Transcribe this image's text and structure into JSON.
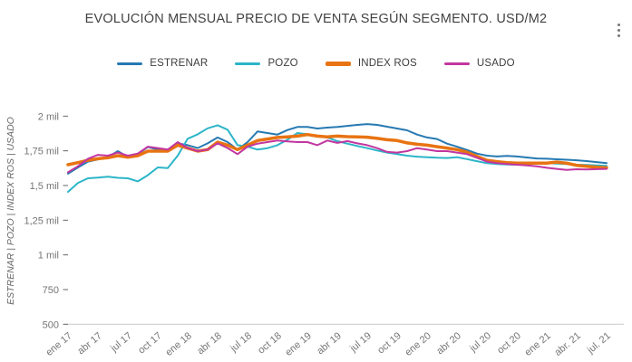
{
  "icons": {
    "menu": "kebab-menu-icon"
  },
  "colors": {
    "background": "#ffffff",
    "title_text": "#424242",
    "axis_text": "#757575",
    "axis_title_text": "#666666",
    "baseline": "#c9c9c9",
    "tick_mark": "#666666"
  },
  "chart_data": {
    "type": "line",
    "title": "EVOLUCIÓN MENSUAL PRECIO DE VENTA SEGÚN SEGMENTO. USD/M2",
    "ylabel": "ESTRENAR | POZO | INDEX ROS | USADO",
    "legend_position": "top",
    "grid": false,
    "ylim": [
      500,
      2085
    ],
    "y_ticks": [
      {
        "label": "2 mil",
        "value": 2000
      },
      {
        "label": "1,75 mil",
        "value": 1750
      },
      {
        "label": "1,5 mil",
        "value": 1500
      },
      {
        "label": "1,25 mil",
        "value": 1250
      },
      {
        "label": "1 mil",
        "value": 1000
      },
      {
        "label": "750",
        "value": 750
      },
      {
        "label": "500",
        "value": 500
      }
    ],
    "x_tick_step": 3,
    "x_tick_labels": [
      "ene 17",
      "abr 17",
      "jul 17",
      "oct 17",
      "ene 18",
      "abr 18",
      "jul 18",
      "oct 18",
      "ene 19",
      "abr 19",
      "jul 19",
      "oct 19",
      "ene 20",
      "abr 20",
      "jul 20",
      "oct 20",
      "ene 21",
      "abr. 21",
      "jul. 21"
    ],
    "x": [
      "ene 17",
      "feb 17",
      "mar 17",
      "abr 17",
      "may 17",
      "jun 17",
      "jul 17",
      "ago 17",
      "sep 17",
      "oct 17",
      "nov 17",
      "dic 17",
      "ene 18",
      "feb 18",
      "mar 18",
      "abr 18",
      "may 18",
      "jun 18",
      "jul 18",
      "ago 18",
      "sep 18",
      "oct 18",
      "nov 18",
      "dic 18",
      "ene 19",
      "feb 19",
      "mar 19",
      "abr 19",
      "may 19",
      "jun 19",
      "jul 19",
      "ago 19",
      "sep 19",
      "oct 19",
      "nov 19",
      "dic 19",
      "ene 20",
      "feb 20",
      "mar 20",
      "abr 20",
      "may 20",
      "jun 20",
      "jul 20",
      "ago 20",
      "sep 20",
      "oct 20",
      "nov 20",
      "dic 20",
      "ene 21",
      "feb 21",
      "mar 21",
      "abr 21",
      "may 21",
      "jun 21",
      "jul 21"
    ],
    "series": [
      {
        "name": "ESTRENAR",
        "color": "#2679b2",
        "line_width": 2,
        "values": [
          1585,
          1630,
          1672,
          1688,
          1705,
          1748,
          1705,
          1726,
          1778,
          1759,
          1748,
          1804,
          1791,
          1770,
          1804,
          1846,
          1813,
          1759,
          1813,
          1889,
          1878,
          1867,
          1900,
          1922,
          1922,
          1911,
          1917,
          1922,
          1930,
          1937,
          1943,
          1937,
          1924,
          1911,
          1898,
          1867,
          1846,
          1835,
          1802,
          1780,
          1756,
          1730,
          1715,
          1709,
          1713,
          1709,
          1702,
          1695,
          1693,
          1689,
          1686,
          1682,
          1676,
          1669,
          1661
        ]
      },
      {
        "name": "POZO",
        "color": "#2cb5c8",
        "line_width": 2,
        "values": [
          1454,
          1519,
          1552,
          1557,
          1563,
          1555,
          1552,
          1530,
          1574,
          1630,
          1626,
          1715,
          1837,
          1869,
          1912,
          1934,
          1902,
          1791,
          1780,
          1759,
          1769,
          1791,
          1830,
          1878,
          1870,
          1856,
          1846,
          1820,
          1802,
          1785,
          1769,
          1752,
          1737,
          1726,
          1715,
          1708,
          1704,
          1700,
          1698,
          1704,
          1690,
          1675,
          1661,
          1655,
          1652,
          1650,
          1655,
          1660,
          1661,
          1658,
          1655,
          1650,
          1648,
          1645,
          1642
        ]
      },
      {
        "name": "INDEX ROS",
        "color": "#e87312",
        "line_width": 3.5,
        "values": [
          1650,
          1665,
          1682,
          1693,
          1700,
          1715,
          1704,
          1715,
          1748,
          1748,
          1748,
          1791,
          1769,
          1748,
          1759,
          1813,
          1791,
          1759,
          1791,
          1824,
          1835,
          1846,
          1851,
          1856,
          1867,
          1856,
          1850,
          1856,
          1852,
          1850,
          1848,
          1840,
          1830,
          1824,
          1807,
          1797,
          1791,
          1780,
          1770,
          1759,
          1740,
          1710,
          1682,
          1672,
          1665,
          1661,
          1661,
          1661,
          1661,
          1669,
          1660,
          1645,
          1639,
          1632,
          1628
        ]
      },
      {
        "name": "USADO",
        "color": "#c2369f",
        "line_width": 2,
        "values": [
          1596,
          1639,
          1693,
          1721,
          1715,
          1737,
          1715,
          1730,
          1780,
          1770,
          1759,
          1813,
          1770,
          1748,
          1759,
          1804,
          1770,
          1726,
          1780,
          1802,
          1813,
          1824,
          1818,
          1813,
          1813,
          1791,
          1824,
          1807,
          1820,
          1804,
          1791,
          1769,
          1742,
          1737,
          1748,
          1769,
          1759,
          1748,
          1748,
          1737,
          1726,
          1700,
          1672,
          1661,
          1655,
          1650,
          1645,
          1639,
          1628,
          1620,
          1613,
          1617,
          1615,
          1618,
          1620
        ]
      }
    ]
  }
}
